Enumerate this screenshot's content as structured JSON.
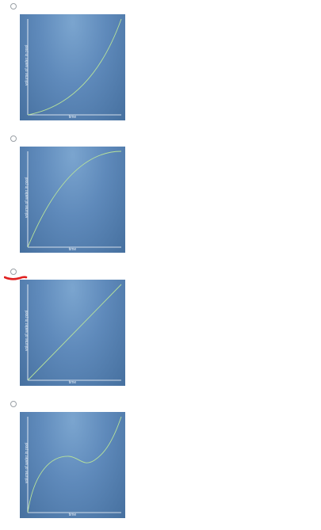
{
  "options": [
    {
      "ylabel": "volume of water in pool",
      "xlabel": "time",
      "curve": "concave-up",
      "chart_data": {
        "type": "line",
        "x": [
          0,
          0.25,
          0.5,
          0.75,
          1
        ],
        "y": [
          0,
          0.06,
          0.22,
          0.5,
          0.96
        ]
      }
    },
    {
      "ylabel": "volume of water in pool",
      "xlabel": "time",
      "curve": "concave-down",
      "chart_data": {
        "type": "line",
        "x": [
          0,
          0.25,
          0.5,
          0.75,
          1
        ],
        "y": [
          0,
          0.52,
          0.8,
          0.93,
          0.96
        ]
      }
    },
    {
      "ylabel": "volume of water in pool",
      "xlabel": "time",
      "curve": "linear",
      "chart_data": {
        "type": "line",
        "x": [
          0,
          1
        ],
        "y": [
          0,
          0.96
        ]
      }
    },
    {
      "ylabel": "volume of water in pool",
      "xlabel": "time",
      "curve": "rise-dip-rise",
      "chart_data": {
        "type": "line",
        "x": [
          0,
          0.2,
          0.4,
          0.6,
          0.8,
          1
        ],
        "y": [
          0,
          0.45,
          0.58,
          0.52,
          0.6,
          0.96
        ]
      }
    }
  ],
  "colors": {
    "curve": "#b8e39a",
    "axis": "#ffffff",
    "annotation": "#e02020"
  }
}
